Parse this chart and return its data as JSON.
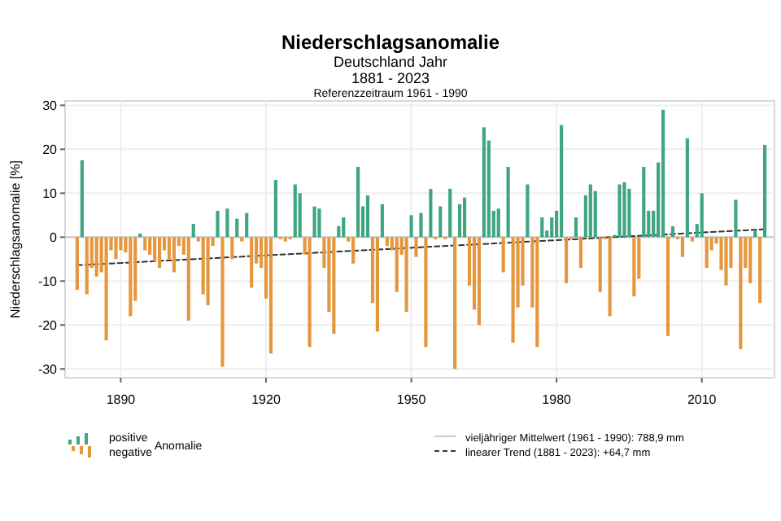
{
  "chart_data": {
    "type": "bar",
    "title": "Niederschlagsanomalie",
    "subtitle": "Deutschland Jahr",
    "annotations": [
      "1881 - 2023",
      "Referenzzeitraum 1961 - 1990",
      "vieljähriger Mittelwert (1961 - 1990): 788,9 mm"
    ],
    "ylabel": "Niederschlagsanomalie [%]",
    "legend_title": "Anomalie",
    "legend": "bottom",
    "grid": true,
    "xlim": [
      1878.5,
      2025
    ],
    "xticks": [
      1890,
      1920,
      1950,
      1980,
      2010
    ],
    "ylim": [
      -32,
      31
    ],
    "yticks": [
      -30,
      -20,
      -10,
      0,
      10,
      20,
      30
    ],
    "x": [
      1881,
      1882,
      1883,
      1884,
      1885,
      1886,
      1887,
      1888,
      1889,
      1890,
      1891,
      1892,
      1893,
      1894,
      1895,
      1896,
      1897,
      1898,
      1899,
      1900,
      1901,
      1902,
      1903,
      1904,
      1905,
      1906,
      1907,
      1908,
      1909,
      1910,
      1911,
      1912,
      1913,
      1914,
      1915,
      1916,
      1917,
      1918,
      1919,
      1920,
      1921,
      1922,
      1923,
      1924,
      1925,
      1926,
      1927,
      1928,
      1929,
      1930,
      1931,
      1932,
      1933,
      1934,
      1935,
      1936,
      1937,
      1938,
      1939,
      1940,
      1941,
      1942,
      1943,
      1944,
      1945,
      1946,
      1947,
      1948,
      1949,
      1950,
      1951,
      1952,
      1953,
      1954,
      1955,
      1956,
      1957,
      1958,
      1959,
      1960,
      1961,
      1962,
      1963,
      1964,
      1965,
      1966,
      1967,
      1968,
      1969,
      1970,
      1971,
      1972,
      1973,
      1974,
      1975,
      1976,
      1977,
      1978,
      1979,
      1980,
      1981,
      1982,
      1983,
      1984,
      1985,
      1986,
      1987,
      1988,
      1989,
      1990,
      1991,
      1992,
      1993,
      1994,
      1995,
      1996,
      1997,
      1998,
      1999,
      2000,
      2001,
      2002,
      2003,
      2004,
      2005,
      2006,
      2007,
      2008,
      2009,
      2010,
      2011,
      2012,
      2013,
      2014,
      2015,
      2016,
      2017,
      2018,
      2019,
      2020,
      2021,
      2022,
      2023
    ],
    "ref_lines": [
      {
        "axis": "y",
        "value": 0,
        "color": "#c8c8c8"
      }
    ],
    "series": [
      {
        "name": "positive",
        "color": "#3fa583",
        "values": [
          null,
          17.5,
          null,
          null,
          null,
          null,
          null,
          null,
          null,
          null,
          null,
          null,
          null,
          0.8,
          null,
          null,
          null,
          null,
          null,
          null,
          null,
          null,
          null,
          null,
          3,
          null,
          null,
          null,
          null,
          6,
          null,
          6.5,
          null,
          4.2,
          null,
          5.5,
          null,
          null,
          null,
          null,
          null,
          13,
          null,
          null,
          null,
          12,
          10,
          null,
          null,
          7,
          6.5,
          null,
          null,
          null,
          2.5,
          4.5,
          null,
          null,
          16,
          7,
          9.5,
          null,
          null,
          7.5,
          null,
          null,
          null,
          null,
          null,
          5,
          null,
          5.5,
          null,
          11,
          null,
          7,
          null,
          11,
          null,
          7.5,
          9,
          null,
          null,
          null,
          25,
          22,
          6,
          6.5,
          null,
          16,
          null,
          null,
          null,
          12,
          null,
          null,
          4.5,
          1.5,
          4.5,
          6,
          25.5,
          null,
          null,
          4.5,
          null,
          9.5,
          12,
          10.5,
          null,
          null,
          null,
          0.5,
          12,
          12.5,
          11,
          null,
          null,
          16,
          6,
          6,
          17,
          29,
          null,
          2.5,
          null,
          null,
          22.5,
          null,
          3,
          10,
          null,
          null,
          null,
          null,
          null,
          null,
          8.5,
          null,
          null,
          null,
          1.5,
          null,
          21
        ]
      },
      {
        "name": "negative",
        "color": "#e5973d",
        "values": [
          -12,
          null,
          -13,
          -7,
          -9,
          -8,
          -23.5,
          -3,
          -5,
          -3,
          -3.5,
          -18,
          -14.5,
          null,
          -3,
          -4,
          -5.5,
          -7,
          -3,
          -5,
          -8,
          -2,
          -4,
          -19,
          null,
          -1,
          -13,
          -15.5,
          -2,
          null,
          -29.5,
          null,
          -5,
          null,
          -1,
          null,
          -11.5,
          -6,
          -7,
          -14,
          -26.5,
          null,
          -0.5,
          -1,
          -0.5,
          null,
          null,
          -4,
          -25,
          null,
          null,
          -7,
          -17,
          -22,
          null,
          null,
          -1,
          -6,
          null,
          null,
          null,
          -15,
          -21.5,
          null,
          -2,
          -3,
          -12.5,
          -4,
          -17,
          null,
          -4.5,
          null,
          -25,
          null,
          -0.5,
          null,
          -0.5,
          null,
          -30,
          null,
          null,
          -11,
          -16.5,
          -20,
          null,
          null,
          null,
          null,
          -8,
          null,
          -24,
          -16,
          -11,
          null,
          -16,
          -25,
          null,
          null,
          null,
          null,
          null,
          -10.5,
          -0.5,
          null,
          -7,
          null,
          null,
          null,
          -12.5,
          -0.5,
          -18,
          null,
          null,
          null,
          null,
          -13.5,
          -9.5,
          null,
          null,
          null,
          null,
          null,
          -22.5,
          null,
          -0.5,
          -4.5,
          null,
          -1,
          null,
          null,
          -7,
          -3,
          -1.5,
          -7.5,
          -11,
          -7,
          null,
          -25.5,
          -7,
          -10.5,
          null,
          -15,
          null
        ]
      },
      {
        "name": "linearer Trend (1881 - 2023): +64,7 mm",
        "type": "line",
        "line_style": "dashed",
        "color": "#333333",
        "x": [
          1881,
          2023
        ],
        "values": [
          -6.4,
          1.8
        ]
      }
    ]
  }
}
